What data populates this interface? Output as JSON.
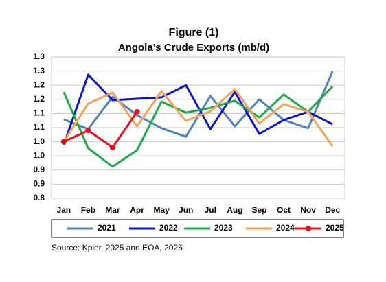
{
  "chart_data": {
    "type": "line",
    "title": "Figure (1)",
    "subtitle": "Angola’s Crude Exports (mb/d)",
    "source": "Source: Kpler, 2025 and EOA, 2025",
    "categories": [
      "Jan",
      "Feb",
      "Mar",
      "Apr",
      "May",
      "Jun",
      "Jul",
      "Aug",
      "Sep",
      "Oct",
      "Nov",
      "Dec"
    ],
    "series": [
      {
        "name": "2021",
        "color": "#4f81bd",
        "values": [
          1.079,
          1.045,
          1.159,
          1.094,
          1.048,
          1.018,
          1.162,
          1.055,
          1.15,
          1.077,
          1.048,
          1.249
        ]
      },
      {
        "name": "2022",
        "color": "#0a14c8",
        "values": [
          0.989,
          1.237,
          1.147,
          1.152,
          1.157,
          1.2,
          1.045,
          1.176,
          1.028,
          1.077,
          1.106,
          1.062
        ]
      },
      {
        "name": "2023",
        "color": "#1ea84a",
        "values": [
          1.176,
          0.977,
          0.912,
          0.97,
          1.142,
          1.103,
          1.12,
          1.145,
          1.086,
          1.167,
          1.106,
          1.196
        ]
      },
      {
        "name": "2024",
        "color": "#f4a259",
        "values": [
          1.0,
          1.135,
          1.174,
          1.055,
          1.179,
          1.074,
          1.108,
          1.186,
          1.065,
          1.133,
          1.106,
          0.984
        ]
      },
      {
        "name": "2025",
        "color": "#e8101a",
        "marker": true,
        "values": [
          1.0,
          1.04,
          0.98,
          1.106,
          null,
          null,
          null,
          null,
          null,
          null,
          null,
          null
        ]
      }
    ],
    "ylim": [
      0.8,
      1.3
    ],
    "yticks": [
      0.8,
      {
        "value": 0.85,
        "label": "0.9"
      },
      0.9,
      {
        "value": 0.95,
        "label": "1.0"
      },
      {
        "value": 1.0,
        "label": "1.0"
      },
      {
        "value": 1.05,
        "label": "1.1"
      },
      1.1,
      {
        "value": 1.15,
        "label": "1.2"
      },
      1.2,
      {
        "value": 1.25,
        "label": "1.3"
      },
      1.3
    ],
    "grid": true
  }
}
